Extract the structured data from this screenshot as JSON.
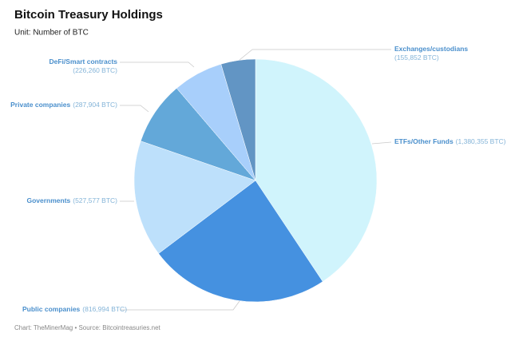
{
  "chart_data": {
    "type": "pie",
    "title": "Bitcoin Treasury Holdings",
    "subtitle": "Unit: Number of BTC",
    "source": "Chart: TheMinerMag • Source: Bitcointreasuries.net",
    "categories": [
      "ETFs/Other Funds",
      "Public companies",
      "Governments",
      "Private companies",
      "DeFi/Smart contracts",
      "Exchanges/custodians"
    ],
    "values": [
      1380355,
      816994,
      527577,
      287904,
      226260,
      155852
    ],
    "value_labels": [
      "(1,380,355 BTC)",
      "(816,994 BTC)",
      "(527,577 BTC)",
      "(287,904 BTC)",
      "(226,260 BTC)",
      "(155,852 BTC)"
    ],
    "colors": [
      "#d0f4fc",
      "#4591e0",
      "#bde0fb",
      "#63a8d9",
      "#a8cffb",
      "#6295c4"
    ]
  }
}
